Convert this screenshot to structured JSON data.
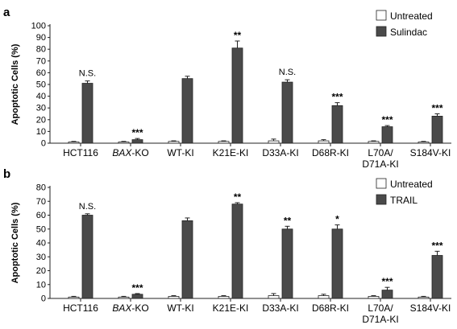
{
  "colors": {
    "untreated": "#ffffff",
    "treated": "#4a4a4a",
    "axis": "#222222"
  },
  "chart_data": [
    {
      "type": "bar",
      "panel_label": "a",
      "ylabel": "Apoptotic Cells (%)",
      "ylim": [
        0,
        100
      ],
      "yticks": [
        0,
        10,
        20,
        30,
        40,
        50,
        60,
        70,
        80,
        90,
        100
      ],
      "categories": [
        {
          "parts": [
            {
              "text": "HCT116"
            }
          ]
        },
        {
          "parts": [
            {
              "text": "BAX",
              "italic": true
            },
            {
              "text": "-KO"
            }
          ]
        },
        {
          "parts": [
            {
              "text": "WT-KI"
            }
          ]
        },
        {
          "parts": [
            {
              "text": "K21E-KI"
            }
          ]
        },
        {
          "parts": [
            {
              "text": "D33A-KI"
            }
          ]
        },
        {
          "parts": [
            {
              "text": "D68R-KI"
            }
          ]
        },
        {
          "parts": [
            {
              "text": "L70A/"
            }
          ],
          "line2": "D71A-KI"
        },
        {
          "parts": [
            {
              "text": "S184V-KI"
            }
          ]
        }
      ],
      "series": [
        {
          "name": "Untreated",
          "color_key": "untreated",
          "values": [
            1,
            1,
            1.5,
            1.5,
            2,
            2,
            1.5,
            1
          ],
          "errors": [
            0.5,
            0.5,
            0.5,
            0.5,
            1.5,
            1,
            0.5,
            0.5
          ]
        },
        {
          "name": "Sulindac",
          "color_key": "treated",
          "values": [
            51,
            3,
            55,
            81,
            52,
            32,
            14,
            23
          ],
          "errors": [
            2,
            1,
            2,
            6,
            2,
            2.5,
            1,
            2
          ]
        }
      ],
      "annotations": [
        "N.S.",
        "***",
        "",
        "**",
        "N.S.",
        "***",
        "***",
        "***"
      ],
      "legend_position": "top-right"
    },
    {
      "type": "bar",
      "panel_label": "b",
      "ylabel": "Apoptotic Cells (%)",
      "ylim": [
        0,
        80
      ],
      "yticks": [
        0,
        10,
        20,
        30,
        40,
        50,
        60,
        70,
        80
      ],
      "categories": [
        {
          "parts": [
            {
              "text": "HCT116"
            }
          ]
        },
        {
          "parts": [
            {
              "text": "BAX",
              "italic": true
            },
            {
              "text": "-KO"
            }
          ]
        },
        {
          "parts": [
            {
              "text": "WT-KI"
            }
          ]
        },
        {
          "parts": [
            {
              "text": "K21E-KI"
            }
          ]
        },
        {
          "parts": [
            {
              "text": "D33A-KI"
            }
          ]
        },
        {
          "parts": [
            {
              "text": "D68R-KI"
            }
          ]
        },
        {
          "parts": [
            {
              "text": "L70A/"
            }
          ],
          "line2": "D71A-KI"
        },
        {
          "parts": [
            {
              "text": "S184V-KI"
            }
          ]
        }
      ],
      "series": [
        {
          "name": "Untreated",
          "color_key": "untreated",
          "values": [
            1,
            1,
            1.5,
            1.5,
            2,
            2,
            1.5,
            1
          ],
          "errors": [
            0.5,
            0.5,
            0.5,
            0.5,
            1.5,
            1,
            0.5,
            0.5
          ]
        },
        {
          "name": "TRAIL",
          "color_key": "treated",
          "values": [
            60,
            3,
            56,
            68,
            50,
            50,
            6,
            31
          ],
          "errors": [
            1,
            0.5,
            2,
            1,
            2,
            3,
            2,
            3
          ]
        }
      ],
      "annotations": [
        "N.S.",
        "***",
        "",
        "**",
        "**",
        "*",
        "***",
        "***"
      ],
      "legend_position": "top-right"
    }
  ]
}
